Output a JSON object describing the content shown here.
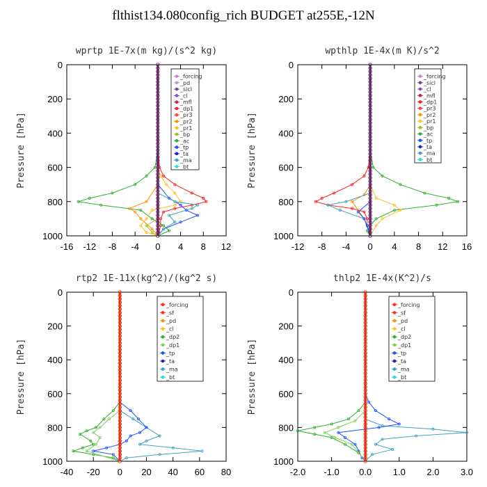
{
  "figure": {
    "title": "flthist134.080config_rich  BUDGET at255E,-12N"
  },
  "chart_data": [
    {
      "type": "line",
      "title": "wprtp  1E-7x(m kg)/(s^2 kg)",
      "ylabel": "Pressure [hPa]",
      "xlim": [
        -16,
        12
      ],
      "ylim": [
        1000,
        0
      ],
      "xticks": [
        "-16",
        "-12",
        "-8",
        "-4",
        "0",
        "4",
        "8",
        "12"
      ],
      "yticks": [
        "0",
        "200",
        "400",
        "600",
        "800",
        "1000"
      ],
      "legend": [
        "_forcing",
        "_pd",
        "_sicl",
        "_cl",
        "_mfl",
        "_dp1",
        "_pr3",
        "_pr2",
        "_pr1",
        "_bp",
        "_ac",
        "_tp",
        "_ta",
        "_ma",
        "_bt"
      ],
      "series": [
        {
          "name": "_dp1",
          "color": "#ff2020",
          "p": [
            0,
            500,
            600,
            650,
            700,
            750,
            780,
            800,
            820,
            840,
            860,
            900,
            940,
            980,
            1000
          ],
          "v": [
            0,
            0,
            0.3,
            1,
            3,
            6,
            8,
            8.5,
            6,
            3,
            1,
            0.5,
            0.5,
            0.2,
            0
          ]
        },
        {
          "name": "_ac",
          "color": "#30b030",
          "p": [
            0,
            500,
            600,
            650,
            700,
            750,
            780,
            800,
            820,
            850,
            900,
            940,
            970,
            1000
          ],
          "v": [
            0,
            0,
            -0.5,
            -2,
            -4,
            -8,
            -12,
            -14,
            -10,
            -3,
            -1,
            1,
            2,
            0
          ]
        },
        {
          "name": "_pr1",
          "color": "#ffc020",
          "p": [
            0,
            600,
            650,
            700,
            750,
            800,
            820,
            850,
            900,
            940,
            980,
            1000
          ],
          "v": [
            0,
            0,
            0.5,
            1.5,
            3,
            4,
            3,
            -1,
            -2,
            -3,
            -2,
            0
          ]
        },
        {
          "name": "_pr2",
          "color": "#ff9000",
          "p": [
            0,
            700,
            800,
            840,
            860,
            900,
            960,
            1000
          ],
          "v": [
            0,
            0,
            -2,
            -5,
            -4,
            -3,
            -1,
            0
          ]
        },
        {
          "name": "_tp",
          "color": "#2050ff",
          "p": [
            0,
            700,
            780,
            820,
            850,
            880,
            920,
            960,
            1000
          ],
          "v": [
            0,
            0,
            2,
            4,
            5,
            7,
            4,
            1,
            0
          ]
        },
        {
          "name": "_ma",
          "color": "#40a0c0",
          "p": [
            0,
            750,
            800,
            820,
            840,
            880,
            920,
            960,
            1000
          ],
          "v": [
            0,
            0,
            3,
            7,
            6,
            2,
            3,
            1,
            0
          ]
        },
        {
          "name": "_bp",
          "color": "#a0c020",
          "p": [
            0,
            900,
            940,
            980,
            1000
          ],
          "v": [
            0,
            0,
            -2,
            -1,
            0
          ]
        }
      ]
    },
    {
      "type": "line",
      "title": "wpthlp  1E-4x(m K)/s^2",
      "ylabel": "Pressure [hPa]",
      "xlim": [
        -12,
        16
      ],
      "ylim": [
        1000,
        0
      ],
      "xticks": [
        "-12",
        "-8",
        "-4",
        "0",
        "4",
        "8",
        "12",
        "16"
      ],
      "yticks": [
        "0",
        "200",
        "400",
        "600",
        "800",
        "1000"
      ],
      "legend": [
        "_forcing",
        "_sicl",
        "_cl",
        "_mfl",
        "_dp1",
        "_pr3",
        "_pr2",
        "_pr1",
        "_bp",
        "_ac",
        "_tp",
        "_ta",
        "_ma",
        "_bt"
      ],
      "series": [
        {
          "name": "_dp1",
          "color": "#ff2020",
          "p": [
            0,
            500,
            600,
            650,
            700,
            750,
            780,
            800,
            820,
            840,
            860,
            900,
            940,
            980,
            1000
          ],
          "v": [
            0,
            0,
            -0.3,
            -1,
            -3,
            -6,
            -8,
            -9,
            -7,
            -3,
            -1,
            -0.5,
            -0.5,
            -0.2,
            0
          ]
        },
        {
          "name": "_ac",
          "color": "#30b030",
          "p": [
            0,
            500,
            600,
            650,
            700,
            750,
            780,
            800,
            820,
            850,
            900,
            940,
            970,
            1000
          ],
          "v": [
            0,
            0,
            0.5,
            2,
            5,
            9,
            13,
            14.5,
            11,
            4,
            1,
            0,
            -0.5,
            0
          ]
        },
        {
          "name": "_pr1",
          "color": "#ffc020",
          "p": [
            0,
            700,
            780,
            820,
            850,
            900,
            940,
            1000
          ],
          "v": [
            0,
            0,
            1,
            4,
            5,
            2,
            1,
            0
          ]
        },
        {
          "name": "_pr2",
          "color": "#ff9000",
          "p": [
            0,
            700,
            760,
            800,
            850,
            900,
            1000
          ],
          "v": [
            0,
            0,
            -1,
            -3,
            -2,
            -1,
            0
          ]
        },
        {
          "name": "_ma",
          "color": "#40a0c0",
          "p": [
            0,
            750,
            800,
            820,
            850,
            900,
            1000
          ],
          "v": [
            0,
            0,
            -4,
            -7,
            -5,
            -1,
            0
          ]
        },
        {
          "name": "_tp",
          "color": "#2050ff",
          "p": [
            0,
            800,
            860,
            900,
            940,
            1000
          ],
          "v": [
            0,
            0,
            -2,
            -1,
            -0.5,
            0
          ]
        }
      ]
    },
    {
      "type": "line",
      "title": "rtp2  1E-11x(kg^2)/(kg^2 s)",
      "ylabel": "Pressure [hPa]",
      "xlim": [
        -40,
        80
      ],
      "ylim": [
        1000,
        0
      ],
      "xticks": [
        "-40",
        "-20",
        "0",
        "20",
        "40",
        "60",
        "80"
      ],
      "yticks": [
        "0",
        "200",
        "400",
        "600",
        "800",
        "1000"
      ],
      "legend": [
        "_forcing",
        "_sf",
        "_pd",
        "_cl",
        "_dp2",
        "_dp1",
        "_tp",
        "_ta",
        "_ma",
        "_bt"
      ],
      "series": [
        {
          "name": "_ma",
          "color": "#40a0c0",
          "p": [
            0,
            700,
            750,
            800,
            850,
            880,
            900,
            920,
            940,
            960,
            980,
            1000
          ],
          "v": [
            0,
            0,
            10,
            20,
            30,
            20,
            15,
            40,
            62,
            30,
            5,
            0
          ]
        },
        {
          "name": "_tp",
          "color": "#2050ff",
          "p": [
            0,
            650,
            700,
            750,
            800,
            830,
            850,
            880,
            900,
            920,
            940,
            960,
            1000
          ],
          "v": [
            0,
            0,
            8,
            14,
            20,
            15,
            8,
            5,
            0,
            -10,
            -20,
            -5,
            0
          ]
        },
        {
          "name": "_dp1",
          "color": "#30b030",
          "p": [
            0,
            650,
            700,
            750,
            800,
            820,
            840,
            880,
            900,
            920,
            940,
            960,
            980,
            1000
          ],
          "v": [
            0,
            0,
            -5,
            -12,
            -18,
            -25,
            -30,
            -22,
            -20,
            -28,
            -35,
            -20,
            -5,
            0
          ]
        },
        {
          "name": "_dp2",
          "color": "#80d060",
          "p": [
            0,
            700,
            750,
            800,
            830,
            860,
            900,
            940,
            1000
          ],
          "v": [
            0,
            0,
            -8,
            -15,
            -20,
            -15,
            -18,
            -25,
            0
          ]
        }
      ]
    },
    {
      "type": "line",
      "title": "thlp2  1E-4x(K^2)/s",
      "ylabel": "Pressure [hPa]",
      "xlim": [
        -2.0,
        3.0
      ],
      "ylim": [
        1000,
        0
      ],
      "xticks": [
        "-2.0",
        "-1.0",
        "0.0",
        "1.0",
        "2.0",
        "3.0"
      ],
      "yticks": [
        "0",
        "200",
        "400",
        "600",
        "800",
        "1000"
      ],
      "legend": [
        "_forcing",
        "_sf",
        "_pd",
        "_cl",
        "_dp2",
        "_dp1",
        "_tp",
        "_ta",
        "_ma",
        "_bt"
      ],
      "series": [
        {
          "name": "_ma",
          "color": "#40a0c0",
          "p": [
            0,
            750,
            790,
            810,
            830,
            850,
            870,
            900,
            930,
            960,
            1000
          ],
          "v": [
            0,
            0,
            0.5,
            2.0,
            3.0,
            1.5,
            0.5,
            0.3,
            0.8,
            0.2,
            0
          ]
        },
        {
          "name": "_tp",
          "color": "#2050ff",
          "p": [
            0,
            600,
            650,
            700,
            750,
            780,
            800,
            830,
            860,
            900,
            940,
            980,
            1000
          ],
          "v": [
            0,
            0,
            0.1,
            0.3,
            0.7,
            1.0,
            0.4,
            -0.8,
            -0.6,
            -0.3,
            -0.2,
            -0.1,
            0
          ]
        },
        {
          "name": "_dp1",
          "color": "#30b030",
          "p": [
            0,
            650,
            700,
            750,
            780,
            800,
            820,
            840,
            860,
            900,
            950,
            1000
          ],
          "v": [
            0,
            0,
            -0.2,
            -0.5,
            -1.0,
            -1.5,
            -2.0,
            -1.5,
            -1.0,
            -0.6,
            -0.2,
            0
          ]
        },
        {
          "name": "_dp2",
          "color": "#80d060",
          "p": [
            0,
            700,
            760,
            800,
            830,
            860,
            900,
            1000
          ],
          "v": [
            0,
            0,
            -0.3,
            -0.8,
            -1.2,
            -0.9,
            -0.4,
            0
          ]
        }
      ]
    }
  ]
}
